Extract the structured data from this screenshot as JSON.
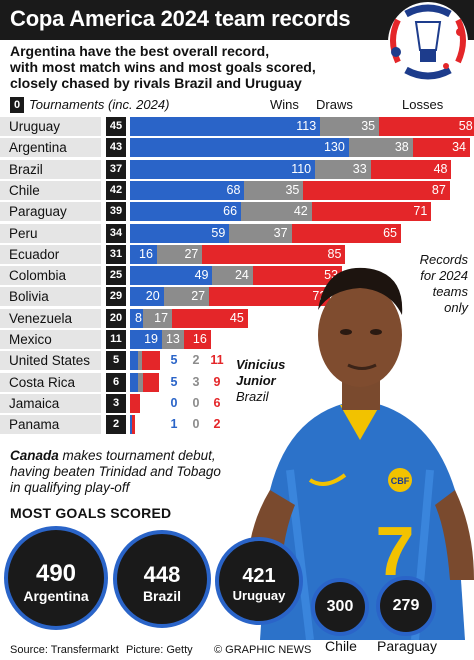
{
  "header": {
    "title": "Copa America 2024 team records",
    "subtitle_lines": [
      "Argentina have the best overall record,",
      "with most match wins and most goals scored,",
      "closely chased by rivals Brazil and Uruguay"
    ]
  },
  "colors": {
    "wins": "#2a64c8",
    "draws": "#8c8c8c",
    "losses": "#e42629",
    "dark": "#1a1a1a",
    "row_bg": "#e5e5e5"
  },
  "legend": {
    "tournaments_badge": "0",
    "tournaments_label": "Tournaments (inc. 2024)",
    "wins": "Wins",
    "draws": "Draws",
    "losses": "Losses"
  },
  "chart_data": {
    "type": "bar",
    "stacked": true,
    "orientation": "horizontal",
    "categories": [
      "Uruguay",
      "Argentina",
      "Brazil",
      "Chile",
      "Paraguay",
      "Peru",
      "Ecuador",
      "Colombia",
      "Bolivia",
      "Venezuela",
      "Mexico",
      "United States",
      "Costa Rica",
      "Jamaica",
      "Panama"
    ],
    "tournaments": [
      45,
      43,
      37,
      42,
      39,
      34,
      31,
      25,
      29,
      20,
      11,
      5,
      6,
      3,
      2
    ],
    "series": [
      {
        "name": "Wins",
        "values": [
          113,
          130,
          110,
          68,
          66,
          59,
          16,
          49,
          20,
          8,
          19,
          5,
          5,
          0,
          1
        ]
      },
      {
        "name": "Draws",
        "values": [
          35,
          38,
          33,
          35,
          42,
          37,
          27,
          24,
          27,
          17,
          13,
          2,
          3,
          0,
          0
        ]
      },
      {
        "name": "Losses",
        "values": [
          58,
          34,
          48,
          87,
          71,
          65,
          85,
          53,
          72,
          45,
          16,
          11,
          9,
          6,
          2
        ]
      }
    ]
  },
  "notes": {
    "records_lines": [
      "Records",
      "for 2024",
      "teams",
      "only"
    ],
    "player_name_lines": [
      "Vinicius",
      "Junior"
    ],
    "player_country": "Brazil",
    "canada_bold": "Canada",
    "canada_rest": " makes tournament debut,",
    "canada_lines": [
      "having beaten Trinidad and Tobago",
      "in qualifying play-off"
    ]
  },
  "goals": {
    "title": "MOST GOALS SCORED",
    "items": [
      {
        "value": "490",
        "team": "Argentina"
      },
      {
        "value": "448",
        "team": "Brazil"
      },
      {
        "value": "421",
        "team": "Uruguay"
      },
      {
        "value": "300",
        "team": "Chile"
      },
      {
        "value": "279",
        "team": "Paraguay"
      }
    ]
  },
  "footer": {
    "source": "Source: Transfermarkt",
    "picture": "Picture: Getty",
    "credit": "© GRAPHIC NEWS"
  }
}
